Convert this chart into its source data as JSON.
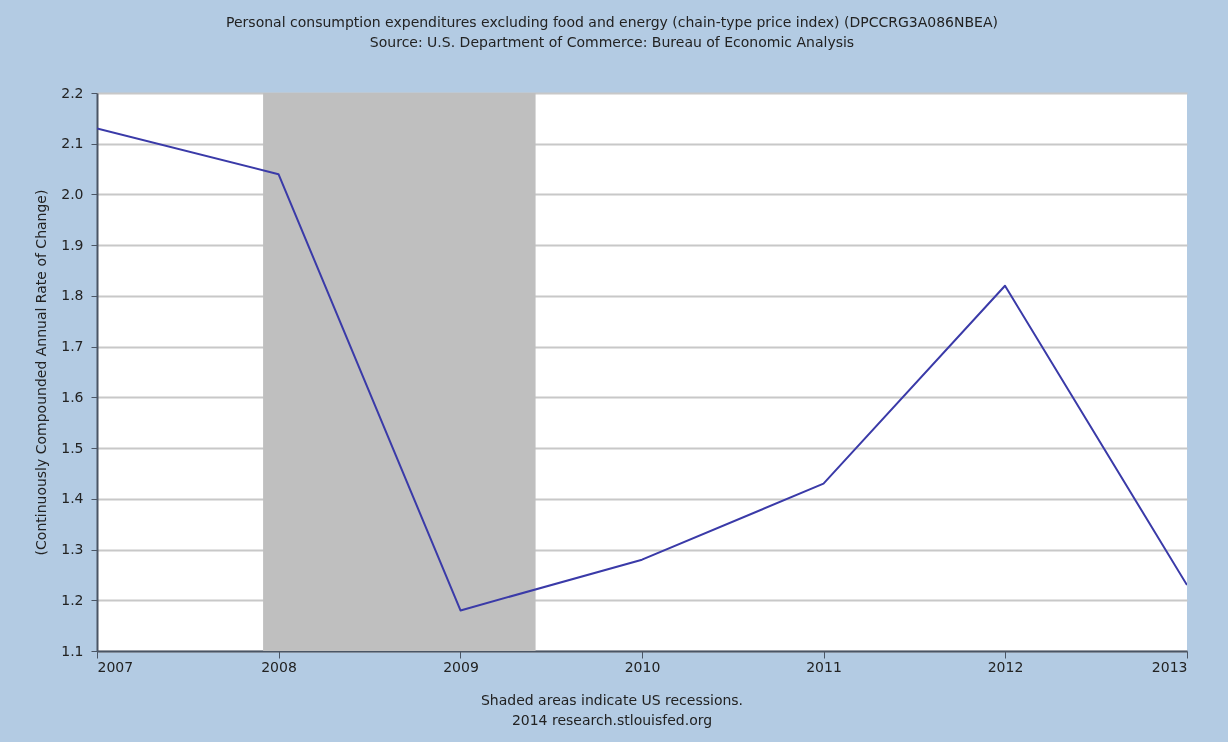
{
  "chart_data": {
    "type": "line",
    "title": "Personal consumption expenditures excluding food and energy (chain-type price index) (DPCCRG3A086NBEA)",
    "subtitle": "Source: U.S. Department of Commerce: Bureau of Economic Analysis",
    "ylabel": "(Continuously Compounded Annual Rate of Change)",
    "annotations": [
      "Shaded areas indicate US recessions.",
      "2014 research.stlouisfed.org"
    ],
    "x": [
      "2007",
      "2008",
      "2009",
      "2010",
      "2011",
      "2012",
      "2013"
    ],
    "series": [
      {
        "color": "#3a3aa8",
        "values": [
          2.13,
          2.04,
          1.18,
          1.28,
          1.43,
          1.82,
          1.23
        ]
      }
    ],
    "xlim": [
      "2007",
      "2013"
    ],
    "xticks": [
      "2007",
      "2008",
      "2009",
      "2010",
      "2011",
      "2012",
      "2013"
    ],
    "ylim": [
      1.1,
      2.2
    ],
    "yticks": [
      1.1,
      1.2,
      1.3,
      1.4,
      1.5,
      1.6,
      1.7,
      1.8,
      1.9,
      {
        "value": 2.0,
        "label": "2.0"
      },
      2.1,
      2.2
    ],
    "bands": [
      {
        "axis": "x",
        "from": "2007-12",
        "to": "2009-06",
        "color": "#bfbfbf"
      }
    ],
    "grid": "y",
    "line_style": "solid",
    "marker": "none"
  }
}
